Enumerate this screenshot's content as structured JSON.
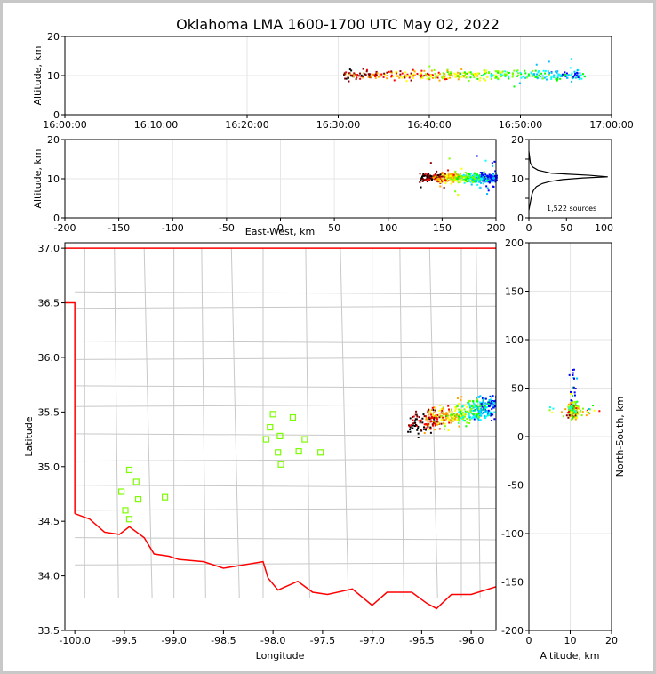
{
  "figure": {
    "title": "Oklahoma LMA 1600-1700 UTC May 02, 2022",
    "source_count_label": "1,522 sources"
  },
  "chart_data": [
    {
      "panel": "time-height",
      "type": "scatter",
      "ylabel": "Altitude, km",
      "xlabel": "",
      "xlim": [
        "16:00:00",
        "17:00:00"
      ],
      "ylim": [
        0,
        20
      ],
      "xticks": [
        "16:00:00",
        "16:10:00",
        "16:20:00",
        "16:30:00",
        "16:40:00",
        "16:50:00",
        "17:00:00"
      ],
      "yticks": [
        0,
        10,
        20
      ],
      "grid": true,
      "points_summary": "sources between 16:30:30 and 16:57:00 UTC at altitudes ~7-15 km, clustered near 10-11 km",
      "time_range_active": [
        "16:30:30",
        "16:57:00"
      ]
    },
    {
      "panel": "east-west-altitude",
      "type": "scatter",
      "xlabel": "East-West, km",
      "ylabel": "Altitude, km",
      "xlim": [
        -200,
        200
      ],
      "ylim": [
        0,
        20
      ],
      "xticks": [
        -200,
        -150,
        -100,
        -50,
        0,
        50,
        100,
        150,
        200
      ],
      "yticks": [
        0,
        10,
        20
      ],
      "grid": true,
      "points_summary": "sources between about 128 and 200 km east-west, altitudes ~4-15 km, dense near 10-11 km"
    },
    {
      "panel": "altitude-histogram",
      "type": "line",
      "xlabel": "",
      "ylabel": "",
      "xlim": [
        0,
        110
      ],
      "ylim": [
        0,
        20
      ],
      "xticks": [
        0,
        50,
        100
      ],
      "yticks": [
        0,
        5,
        10,
        15,
        20
      ],
      "x": [
        0,
        1,
        2,
        3,
        4,
        6,
        10,
        18,
        28,
        45,
        72,
        105,
        80,
        30,
        12,
        5,
        2,
        1,
        0
      ],
      "y": [
        2,
        3,
        4,
        5,
        6,
        7,
        8,
        8.8,
        9.3,
        9.8,
        10.2,
        10.5,
        10.9,
        11.4,
        12.2,
        13,
        14,
        15.5,
        17
      ],
      "annotation": "1,522 sources"
    },
    {
      "panel": "plan-view",
      "type": "scatter",
      "xlabel": "Longitude",
      "ylabel": "Latitude",
      "xlim": [
        -100.1,
        -95.75
      ],
      "ylim": [
        33.5,
        37.05
      ],
      "xticks": [
        "-100.0",
        "-99.5",
        "-99.0",
        "-98.5",
        "-98.0",
        "-97.5",
        "-97.0",
        "-96.5",
        "-96.0"
      ],
      "yticks": [
        "33.5",
        "34.0",
        "34.5",
        "35.0",
        "35.5",
        "36.0",
        "36.5",
        "37.0"
      ],
      "stations_color": "#7cfc00",
      "state_border_color": "#ff0000",
      "county_color": "#c8c8c8",
      "points_summary": "sources clustered from about -96.65 to -95.75 longitude, 35.35 to 35.9 latitude"
    },
    {
      "panel": "altitude-north-south",
      "type": "scatter",
      "xlabel": "Altitude, km",
      "ylabel": "North-South, km",
      "xlim": [
        0,
        20
      ],
      "ylim": [
        -200,
        200
      ],
      "xticks": [
        0,
        10,
        20
      ],
      "yticks": [
        -200,
        -150,
        -100,
        -50,
        0,
        50,
        100,
        150,
        200
      ],
      "grid": true,
      "points_summary": "sources at altitudes ~3-14 km, north-south ~13 to 68 km, dense near 10-11 km and 20-35 km"
    }
  ],
  "stations": [
    {
      "lon": -99.45,
      "lat": 34.97
    },
    {
      "lon": -99.38,
      "lat": 34.86
    },
    {
      "lon": -99.53,
      "lat": 34.77
    },
    {
      "lon": -99.09,
      "lat": 34.72
    },
    {
      "lon": -99.36,
      "lat": 34.7
    },
    {
      "lon": -99.49,
      "lat": 34.6
    },
    {
      "lon": -99.45,
      "lat": 34.52
    },
    {
      "lon": -98.0,
      "lat": 35.48
    },
    {
      "lon": -97.8,
      "lat": 35.45
    },
    {
      "lon": -98.03,
      "lat": 35.36
    },
    {
      "lon": -97.93,
      "lat": 35.28
    },
    {
      "lon": -98.07,
      "lat": 35.25
    },
    {
      "lon": -97.68,
      "lat": 35.25
    },
    {
      "lon": -97.95,
      "lat": 35.13
    },
    {
      "lon": -97.74,
      "lat": 35.14
    },
    {
      "lon": -97.52,
      "lat": 35.13
    },
    {
      "lon": -97.92,
      "lat": 35.02
    }
  ]
}
